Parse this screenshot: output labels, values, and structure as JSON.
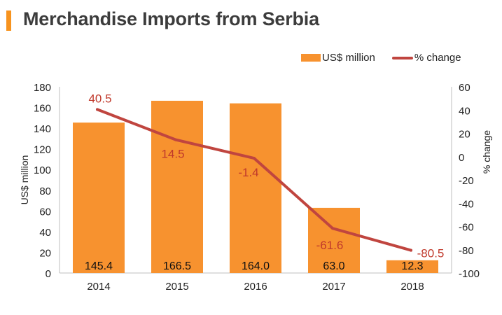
{
  "title": "Merchandise Imports from Serbia",
  "legend": {
    "bar_label": "US$ million",
    "line_label": "% change"
  },
  "colors": {
    "accent": "#f7931e",
    "bar": "#f7922f",
    "line": "#c0453f",
    "line_label": "#c0392b",
    "text": "#222222",
    "title": "#3c3c3c"
  },
  "chart_data": {
    "type": "bar+line",
    "title": "Merchandise Imports from Serbia",
    "categories": [
      "2014",
      "2015",
      "2016",
      "2017",
      "2018"
    ],
    "series": [
      {
        "name": "US$ million",
        "type": "bar",
        "axis": "left",
        "values": [
          145.4,
          166.5,
          164.0,
          63.0,
          12.3
        ],
        "labels": [
          "145.4",
          "166.5",
          "164.0",
          "63.0",
          "12.3"
        ]
      },
      {
        "name": "% change",
        "type": "line",
        "axis": "right",
        "values": [
          40.5,
          14.5,
          -1.4,
          -61.6,
          -80.5
        ],
        "labels": [
          "40.5",
          "14.5",
          "-1.4",
          "-61.6",
          "-80.5"
        ]
      }
    ],
    "ylabel_left": "US$ million",
    "ylabel_right": "% change",
    "ylim_left": [
      0,
      180
    ],
    "ylim_right": [
      -100,
      60
    ],
    "yticks_left": [
      "0",
      "20",
      "40",
      "60",
      "80",
      "100",
      "120",
      "140",
      "160",
      "180"
    ],
    "yticks_right": [
      "-100",
      "-80",
      "-60",
      "-40",
      "-20",
      "0",
      "20",
      "40",
      "60"
    ],
    "grid": false,
    "legend_position": "top-right"
  }
}
